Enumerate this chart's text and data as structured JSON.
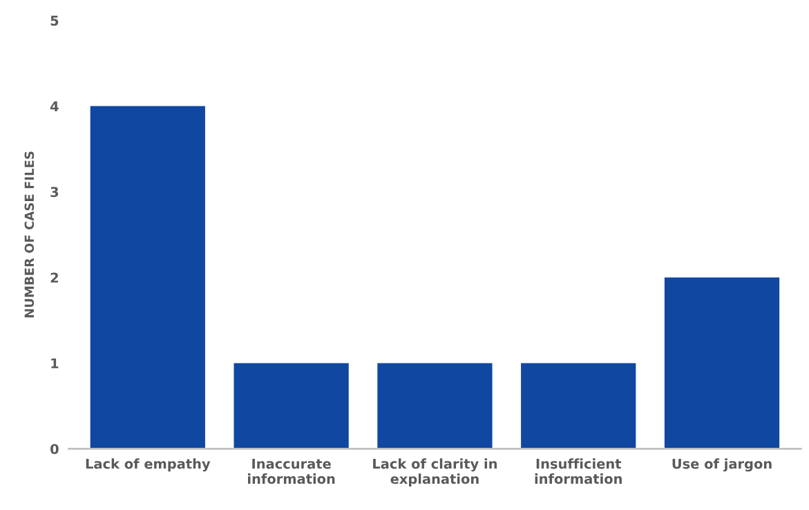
{
  "chart_data": {
    "type": "bar",
    "ylabel": "NUMBER OF CASE FILES",
    "categories": [
      "Lack of empathy",
      "Inaccurate information",
      "Lack of clarity in explanation",
      "Insufficient information",
      "Use of jargon"
    ],
    "values": [
      4,
      1,
      1,
      1,
      2
    ],
    "color": "#0f47a1",
    "ylim": [
      0,
      5
    ],
    "yticks": [
      0,
      1,
      2,
      3,
      4,
      5
    ],
    "grid": false
  }
}
